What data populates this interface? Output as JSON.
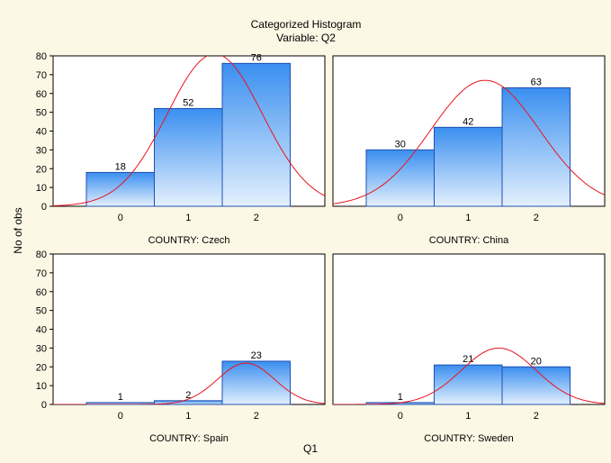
{
  "title": "Categorized Histogram",
  "subtitle": "Variable: Q2",
  "xlabel": "Q1",
  "ylabel": "No of obs",
  "colors": {
    "background": "#fdf8e6",
    "plot_background": "#ffffff",
    "bar_top": "#3a8ff0",
    "bar_bottom": "#e4f0fd",
    "bar_edge": "#1f4fb0",
    "curve": "#e8141c"
  },
  "chart_data": [
    {
      "type": "bar",
      "panel_label": "COUNTRY: Czech",
      "categories": [
        "0",
        "1",
        "2"
      ],
      "values": [
        18,
        52,
        76
      ],
      "value_labels": [
        "18",
        "52",
        "76"
      ],
      "ylim": [
        0,
        80
      ],
      "yticks": [
        "0",
        "10",
        "20",
        "30",
        "40",
        "50",
        "60",
        "70",
        "80"
      ],
      "normal_curve": {
        "mean": 1.39,
        "sd": 0.7,
        "peak": 81
      }
    },
    {
      "type": "bar",
      "panel_label": "COUNTRY: China",
      "categories": [
        "0",
        "1",
        "2"
      ],
      "values": [
        30,
        42,
        63
      ],
      "value_labels": [
        "30",
        "42",
        "63"
      ],
      "ylim": [
        0,
        80
      ],
      "normal_curve": {
        "mean": 1.25,
        "sd": 0.8,
        "peak": 67
      }
    },
    {
      "type": "bar",
      "panel_label": "COUNTRY: Spain",
      "categories": [
        "0",
        "1",
        "2"
      ],
      "values": [
        1,
        2,
        23
      ],
      "value_labels": [
        "1",
        "2",
        "23"
      ],
      "ylim": [
        0,
        80
      ],
      "yticks": [
        "0",
        "10",
        "20",
        "30",
        "40",
        "50",
        "60",
        "70",
        "80"
      ],
      "normal_curve": {
        "mean": 1.85,
        "sd": 0.42,
        "peak": 22
      }
    },
    {
      "type": "bar",
      "panel_label": "COUNTRY: Sweden",
      "categories": [
        "0",
        "1",
        "2"
      ],
      "values": [
        1,
        21,
        20
      ],
      "value_labels": [
        "1",
        "21",
        "20"
      ],
      "ylim": [
        0,
        80
      ],
      "normal_curve": {
        "mean": 1.45,
        "sd": 0.55,
        "peak": 30
      }
    }
  ]
}
